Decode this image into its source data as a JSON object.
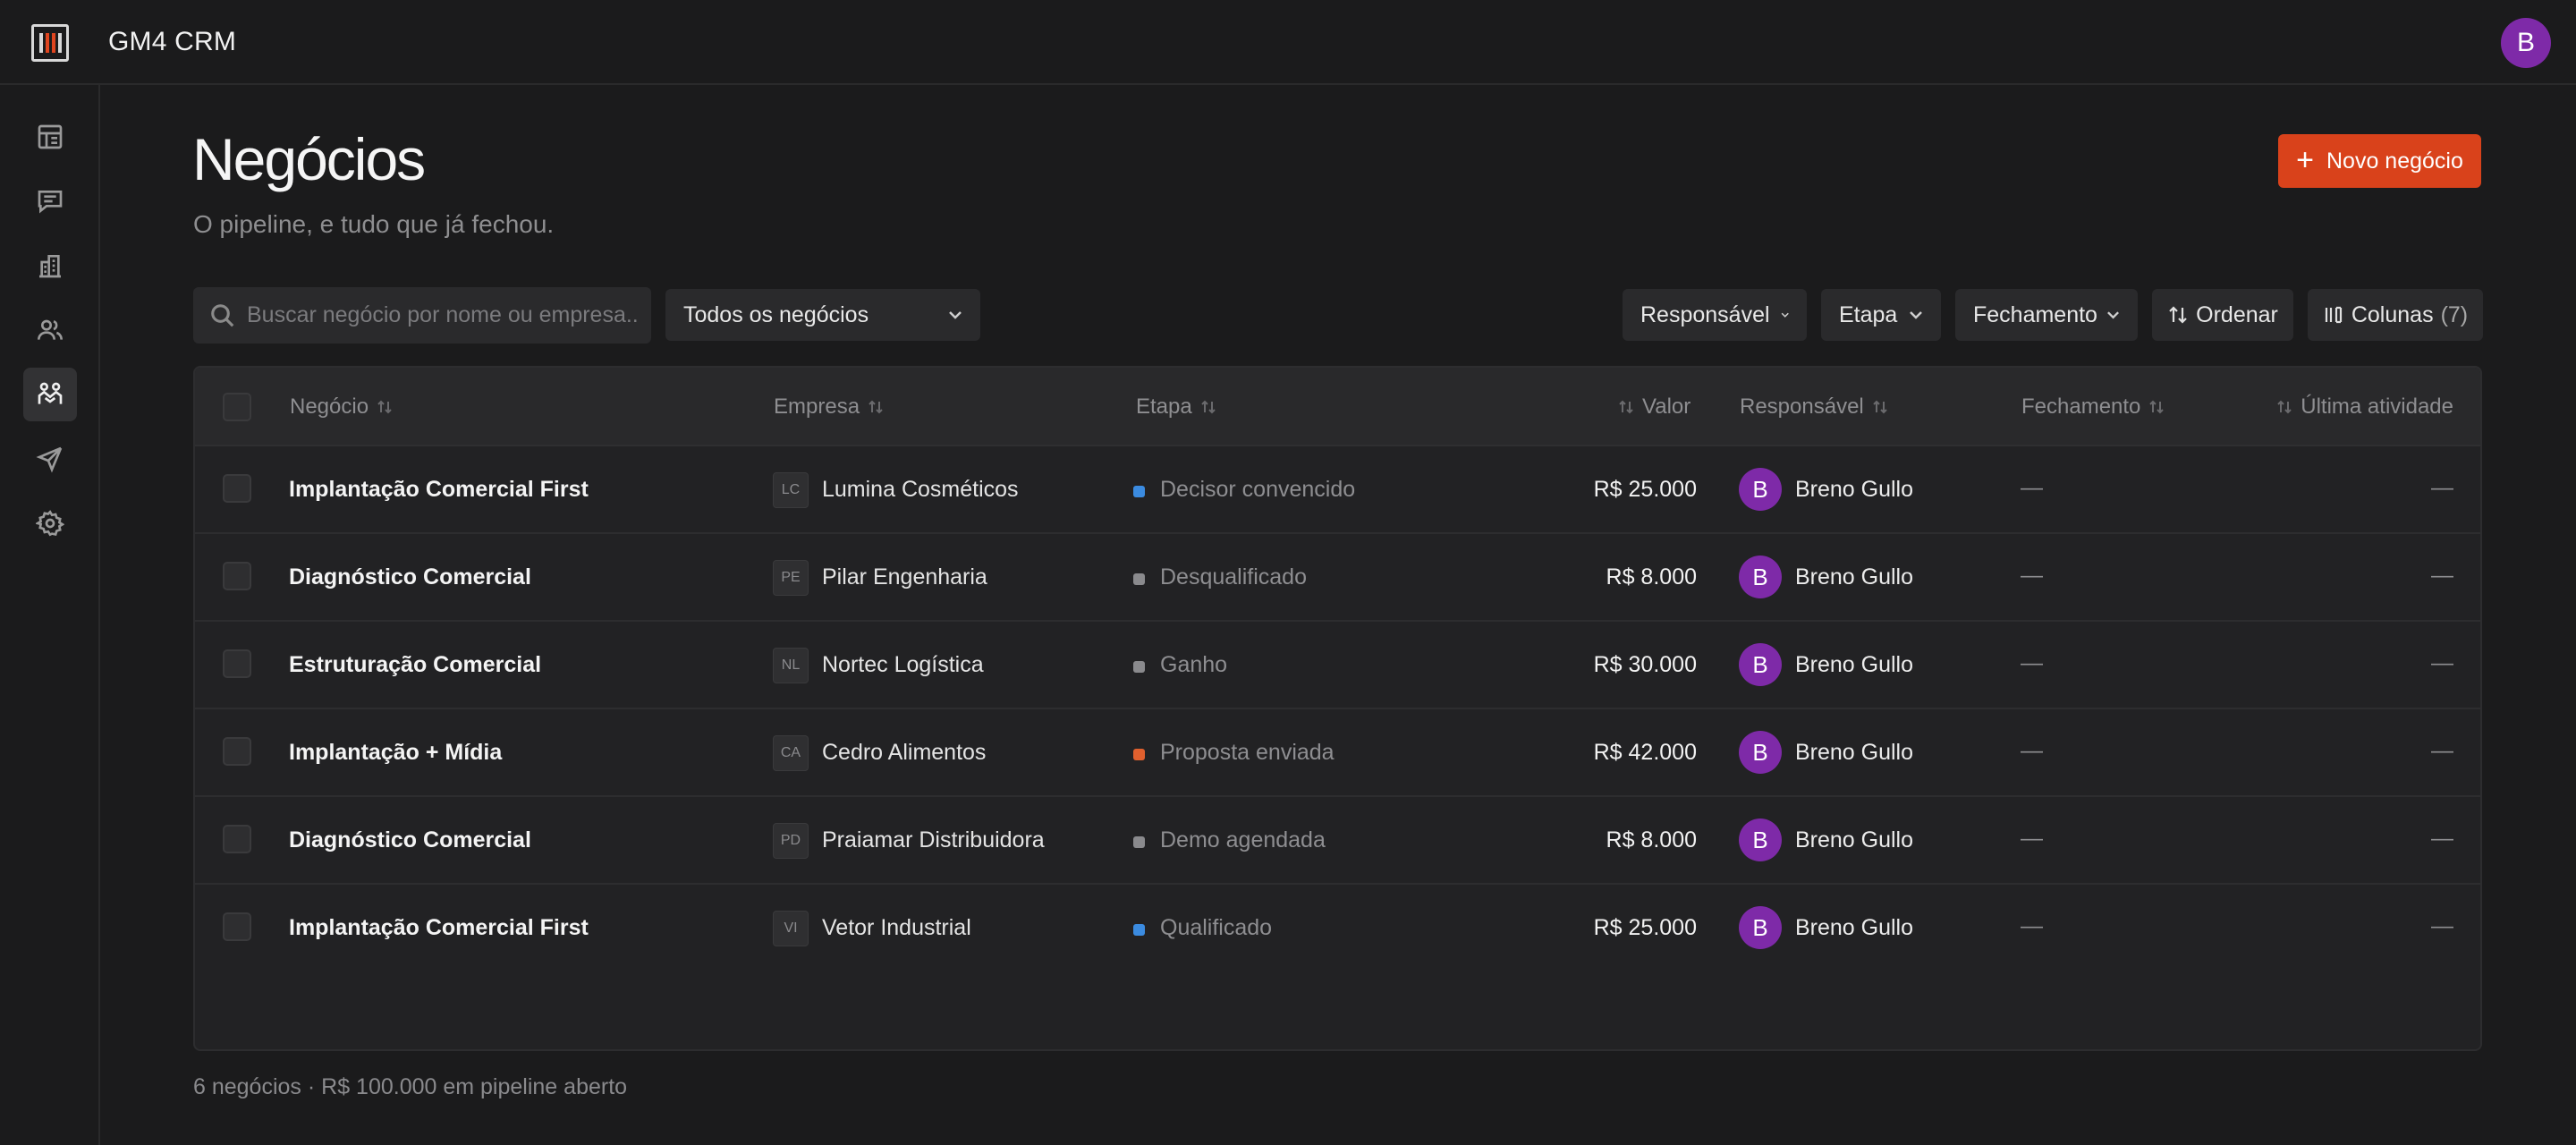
{
  "app": {
    "title": "GM4 CRM",
    "avatar_initial": "B"
  },
  "sidebar": {
    "items": [
      {
        "name": "dashboard",
        "icon": "dashboard-icon",
        "active": false
      },
      {
        "name": "messages",
        "icon": "chat-icon",
        "active": false
      },
      {
        "name": "companies",
        "icon": "building-icon",
        "active": false
      },
      {
        "name": "contacts",
        "icon": "users-icon",
        "active": false
      },
      {
        "name": "deals",
        "icon": "handshake-icon",
        "active": true
      },
      {
        "name": "send",
        "icon": "send-icon",
        "active": false
      },
      {
        "name": "settings",
        "icon": "gear-icon",
        "active": false
      }
    ]
  },
  "header": {
    "title": "Negócios",
    "subtitle": "O pipeline, e tudo que já fechou.",
    "new_button_icon": "+",
    "new_button": "Novo negócio"
  },
  "toolbar": {
    "search_placeholder": "Buscar negócio por nome ou empresa...",
    "view_filter": "Todos os negócios",
    "filters": [
      "Responsável",
      "Etapa",
      "Fechamento"
    ],
    "sort_label": "Ordenar",
    "columns_label": "Colunas",
    "columns_count": "(7)"
  },
  "table": {
    "headers": {
      "deal": "Negócio",
      "company": "Empresa",
      "stage": "Etapa",
      "value": "Valor",
      "owner": "Responsável",
      "closing": "Fechamento",
      "last_activity": "Última atividade"
    },
    "rows": [
      {
        "deal": "Implantação Comercial First",
        "company_initials": "LC",
        "company": "Lumina Cosméticos",
        "stage": "Decisor convencido",
        "stage_color": "#3b8be0",
        "value": "R$ 25.000",
        "owner_initial": "B",
        "owner": "Breno Gullo",
        "closing": "—",
        "last_activity": "—"
      },
      {
        "deal": "Diagnóstico Comercial",
        "company_initials": "PE",
        "company": "Pilar Engenharia",
        "stage": "Desqualificado",
        "stage_color": "#8a8a8d",
        "value": "R$ 8.000",
        "owner_initial": "B",
        "owner": "Breno Gullo",
        "closing": "—",
        "last_activity": "—"
      },
      {
        "deal": "Estruturação Comercial",
        "company_initials": "NL",
        "company": "Nortec Logística",
        "stage": "Ganho",
        "stage_color": "#8a8a8d",
        "value": "R$ 30.000",
        "owner_initial": "B",
        "owner": "Breno Gullo",
        "closing": "—",
        "last_activity": "—"
      },
      {
        "deal": "Implantação + Mídia",
        "company_initials": "CA",
        "company": "Cedro Alimentos",
        "stage": "Proposta enviada",
        "stage_color": "#e0602e",
        "value": "R$ 42.000",
        "owner_initial": "B",
        "owner": "Breno Gullo",
        "closing": "—",
        "last_activity": "—"
      },
      {
        "deal": "Diagnóstico Comercial",
        "company_initials": "PD",
        "company": "Praiamar Distribuidora",
        "stage": "Demo agendada",
        "stage_color": "#8a8a8d",
        "value": "R$ 8.000",
        "owner_initial": "B",
        "owner": "Breno Gullo",
        "closing": "—",
        "last_activity": "—"
      },
      {
        "deal": "Implantação Comercial First",
        "company_initials": "VI",
        "company": "Vetor Industrial",
        "stage": "Qualificado",
        "stage_color": "#3b8be0",
        "value": "R$ 25.000",
        "owner_initial": "B",
        "owner": "Breno Gullo",
        "closing": "—",
        "last_activity": "—"
      }
    ]
  },
  "footer": {
    "summary": "6 negócios · R$ 100.000 em pipeline aberto"
  },
  "colors": {
    "accent": "#d9421b",
    "avatar": "#7e2aa8",
    "background": "#1b1b1c"
  }
}
